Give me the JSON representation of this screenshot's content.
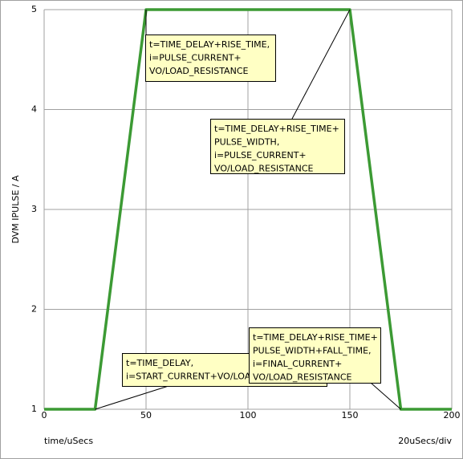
{
  "chart_data": {
    "type": "line",
    "xlabel": "time/uSecs",
    "ylabel": "DVM IPULSE / A",
    "scale_note": "20uSecs/div",
    "x": [
      0,
      25,
      50,
      150,
      175,
      200
    ],
    "series": [
      {
        "color": "#3c9a34",
        "values": [
          1,
          1,
          5,
          5,
          1,
          1
        ]
      }
    ],
    "xlim": [
      0,
      200
    ],
    "ylim": [
      1,
      5
    ],
    "xticks": [
      0,
      50,
      100,
      150,
      200
    ],
    "yticks": [
      1,
      2,
      3,
      4,
      5
    ],
    "grid": true,
    "annotations": [
      {
        "lines": [
          "t=TIME_DELAY+RISE_TIME,",
          "i=PULSE_CURRENT+",
          "VO/LOAD_RESISTANCE"
        ]
      },
      {
        "lines": [
          "t=TIME_DELAY+RISE_TIME+",
          "PULSE_WIDTH,",
          "i=PULSE_CURRENT+",
          "VO/LOAD_RESISTANCE"
        ]
      },
      {
        "lines": [
          "t=TIME_DELAY,",
          "i=START_CURRENT+VO/LOAD_RESISTANCE"
        ]
      },
      {
        "lines": [
          "t=TIME_DELAY+RISE_TIME+",
          "PULSE_WIDTH+FALL_TIME,",
          "i=FINAL_CURRENT+",
          "VO/LOAD_RESISTANCE"
        ]
      }
    ]
  }
}
